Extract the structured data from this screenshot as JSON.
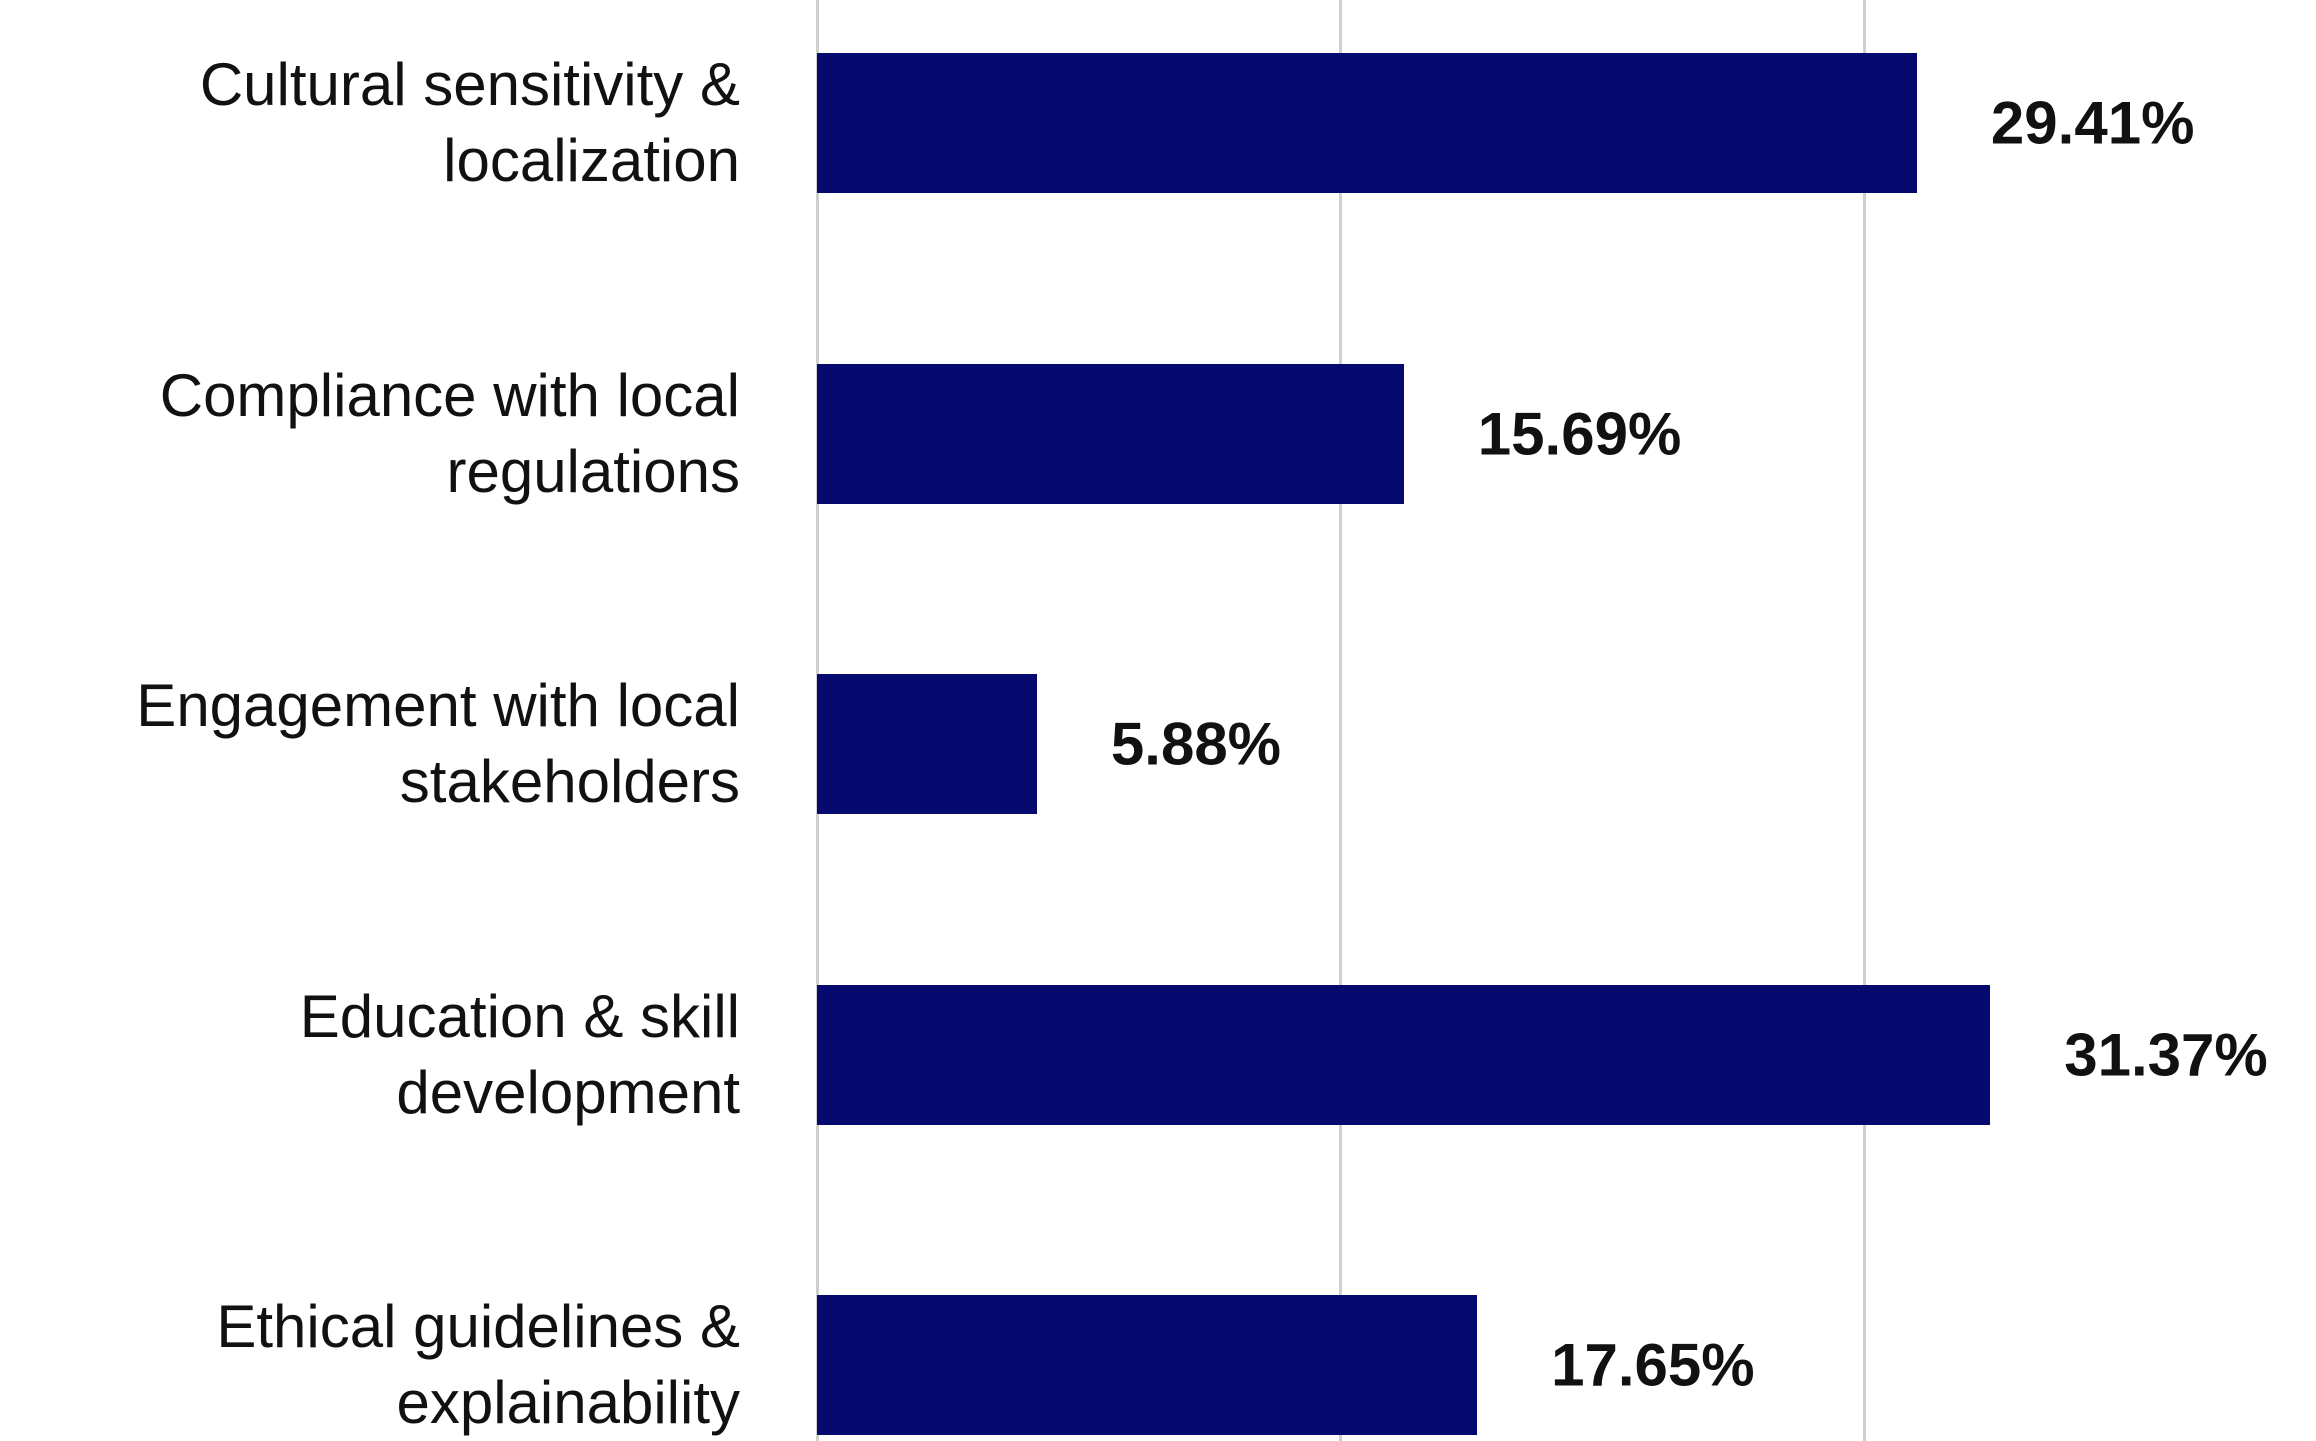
{
  "chart_data": {
    "type": "barh",
    "categories": [
      "Cultural sensitivity & localization",
      "Compliance with local regulations",
      "Engagement with local stakeholders",
      "Education & skill development",
      "Ethical guidelines & explainability"
    ],
    "values": [
      29.41,
      15.69,
      5.88,
      31.37,
      17.65
    ],
    "value_labels": [
      "29.41%",
      "15.69%",
      "5.88%",
      "31.37%",
      "17.65%"
    ],
    "color": "#060a6e",
    "xlim": [
      0,
      40
    ],
    "xticks": [
      0,
      14,
      28
    ],
    "grid": true
  }
}
